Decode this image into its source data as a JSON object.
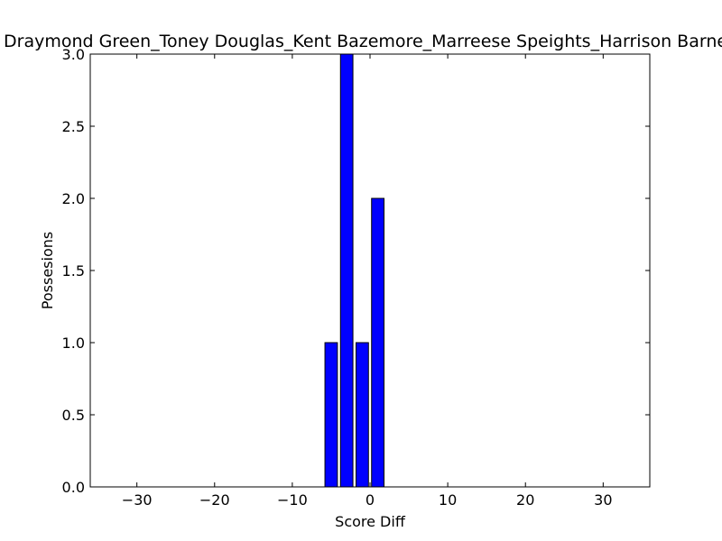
{
  "chart_data": {
    "type": "bar",
    "title": "Draymond Green_Toney Douglas_Kent Bazemore_Marreese Speights_Harrison Barnes",
    "xlabel": "Score Diff",
    "ylabel": "Possesions",
    "xlim": [
      -36,
      36
    ],
    "ylim": [
      0,
      3.0
    ],
    "x_ticks": [
      -30,
      -20,
      -10,
      0,
      10,
      20,
      30
    ],
    "x_tick_labels": [
      "−30",
      "−20",
      "−10",
      "0",
      "10",
      "20",
      "30"
    ],
    "y_ticks": [
      0.0,
      0.5,
      1.0,
      1.5,
      2.0,
      2.5,
      3.0
    ],
    "y_tick_labels": [
      "0.0",
      "0.5",
      "1.0",
      "1.5",
      "2.0",
      "2.5",
      "3.0"
    ],
    "bar_width": 1.6,
    "bars": [
      {
        "x": -5,
        "value": 1
      },
      {
        "x": -3,
        "value": 3
      },
      {
        "x": -1,
        "value": 1
      },
      {
        "x": 1,
        "value": 2
      }
    ],
    "bar_color": "#0000ff",
    "grid": false
  }
}
